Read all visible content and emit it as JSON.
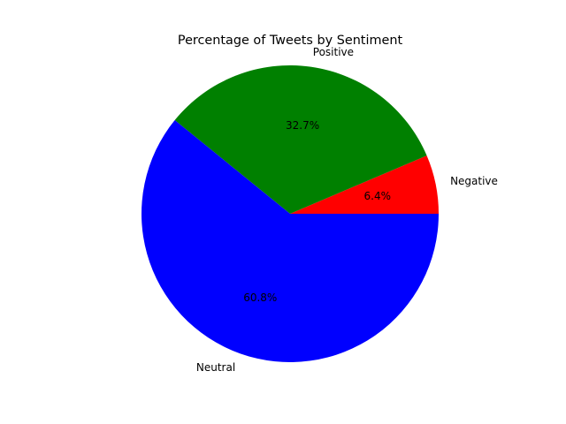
{
  "chart_data": {
    "type": "pie",
    "title": "Percentage of Tweets by Sentiment",
    "start_angle_deg": 0,
    "direction": "counterclockwise",
    "slices": [
      {
        "label": "Negative",
        "value": 6.4,
        "pct_text": "6.4%",
        "color": "#ff0000"
      },
      {
        "label": "Positive",
        "value": 32.7,
        "pct_text": "32.7%",
        "color": "#008000"
      },
      {
        "label": "Neutral",
        "value": 60.8,
        "pct_text": "60.8%",
        "color": "#0000ff"
      }
    ]
  }
}
